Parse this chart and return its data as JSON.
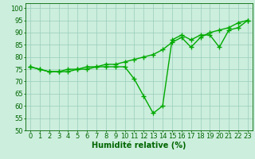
{
  "x": [
    0,
    1,
    2,
    3,
    4,
    5,
    6,
    7,
    8,
    9,
    10,
    11,
    12,
    13,
    14,
    15,
    16,
    17,
    18,
    19,
    20,
    21,
    22,
    23
  ],
  "line1": [
    76,
    75,
    74,
    74,
    74,
    75,
    75,
    76,
    76,
    76,
    76,
    71,
    64,
    57,
    60,
    87,
    89,
    87,
    89,
    89,
    84,
    91,
    92,
    95
  ],
  "line2": [
    76,
    75,
    74,
    74,
    75,
    75,
    76,
    76,
    77,
    77,
    78,
    79,
    80,
    81,
    83,
    86,
    88,
    84,
    88,
    90,
    91,
    92,
    94,
    95
  ],
  "line_color": "#00aa00",
  "bg_color": "#cceedd",
  "grid_color": "#99ccbb",
  "xlabel": "Humidité relative (%)",
  "xlim": [
    -0.5,
    23.5
  ],
  "ylim": [
    50,
    102
  ],
  "yticks": [
    50,
    55,
    60,
    65,
    70,
    75,
    80,
    85,
    90,
    95,
    100
  ],
  "xticks": [
    0,
    1,
    2,
    3,
    4,
    5,
    6,
    7,
    8,
    9,
    10,
    11,
    12,
    13,
    14,
    15,
    16,
    17,
    18,
    19,
    20,
    21,
    22,
    23
  ],
  "marker": "+",
  "marker_size": 4,
  "line_width": 1.0,
  "xlabel_fontsize": 7,
  "tick_fontsize": 6
}
